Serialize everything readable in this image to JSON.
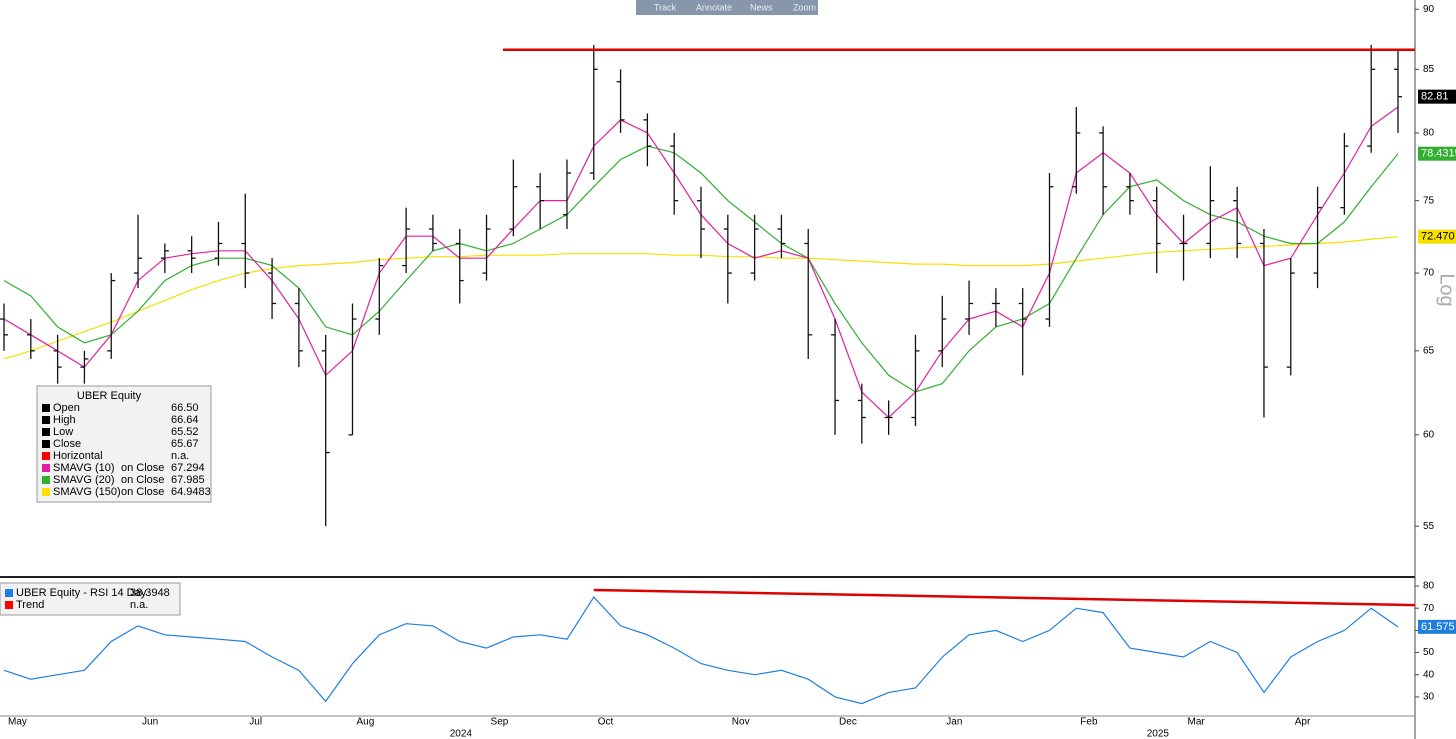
{
  "toolbar": {
    "buttons": [
      "Track",
      "Annotate",
      "News",
      "Zoom"
    ]
  },
  "chart_data": [
    {
      "type": "ohlc",
      "categories": [
        "May",
        null,
        null,
        null,
        null,
        "Jun",
        null,
        null,
        null,
        "Jul",
        null,
        null,
        null,
        "Aug",
        null,
        null,
        null,
        null,
        "Sep",
        null,
        null,
        null,
        "Oct",
        null,
        null,
        null,
        null,
        "Nov",
        null,
        null,
        null,
        "Dec",
        null,
        null,
        null,
        "Jan",
        null,
        null,
        null,
        null,
        "Feb",
        null,
        null,
        null,
        "Mar",
        null,
        null,
        null,
        "Apr",
        null,
        null,
        null,
        null
      ],
      "year_categories": [
        null,
        null,
        null,
        null,
        null,
        null,
        null,
        null,
        null,
        null,
        null,
        null,
        null,
        null,
        null,
        null,
        null,
        "2024",
        null,
        null,
        null,
        null,
        null,
        null,
        null,
        null,
        null,
        null,
        null,
        null,
        null,
        null,
        null,
        null,
        null,
        null,
        null,
        null,
        null,
        null,
        null,
        null,
        null,
        "2025",
        null,
        null,
        null,
        null,
        null,
        null,
        null,
        null,
        null
      ],
      "ohlc": {
        "open": [
          67,
          66,
          65,
          64,
          65,
          70,
          71,
          71.5,
          71,
          72,
          70,
          68,
          65,
          60,
          67,
          70.5,
          73,
          72,
          70,
          73,
          76,
          74,
          77,
          84,
          81,
          79,
          75,
          73,
          70,
          73,
          72,
          66,
          62,
          61,
          61,
          65,
          67,
          68,
          68,
          67,
          76,
          80,
          76,
          75,
          72,
          72,
          75,
          72,
          64,
          70,
          74.5,
          79,
          85
        ],
        "high": [
          68,
          67,
          66,
          65,
          70,
          74,
          72,
          72.5,
          73.5,
          75.5,
          71,
          69,
          66,
          68,
          71,
          74.5,
          74,
          73,
          74,
          78,
          77,
          78,
          87,
          85,
          81.5,
          80,
          76,
          74,
          74,
          74,
          73,
          67,
          63,
          62,
          66,
          68.5,
          69.5,
          69,
          69,
          77,
          82,
          80.5,
          77,
          76,
          74,
          77.5,
          76,
          73,
          71,
          76,
          80,
          87,
          86.5
        ],
        "low": [
          65,
          64.5,
          63,
          63,
          64.5,
          69,
          70,
          70,
          70.5,
          69,
          67,
          64,
          55,
          60,
          66,
          70,
          71.5,
          68,
          69.5,
          72.5,
          73,
          73,
          76.5,
          80,
          77.5,
          74,
          71,
          68,
          69.5,
          71,
          64.5,
          60,
          59.5,
          60,
          60.5,
          64,
          66,
          66.5,
          63.5,
          66.5,
          75.5,
          74,
          74,
          70,
          69.5,
          71,
          71,
          61,
          63.5,
          69,
          74,
          78.5,
          80
        ],
        "close": [
          66,
          65,
          64,
          64.5,
          69.5,
          71,
          71.5,
          71,
          72,
          70,
          68,
          65,
          59,
          67,
          70.5,
          73,
          72,
          69.5,
          73,
          76,
          75,
          77,
          85,
          81,
          79,
          75,
          73,
          70,
          73,
          72,
          66,
          62,
          61,
          61,
          65,
          67,
          68,
          68,
          67,
          76,
          80,
          76,
          75,
          72,
          72,
          75,
          72,
          64,
          70,
          74.5,
          79,
          85,
          82.81
        ],
        "last_label": "82.81"
      },
      "overlays": [
        {
          "color": "#e020a0",
          "values": [
            67,
            66,
            65,
            64,
            66,
            69.5,
            71,
            71.3,
            71.5,
            71.5,
            69.5,
            67,
            63.5,
            65,
            70,
            72.5,
            72.5,
            71,
            71,
            73,
            75,
            75,
            79,
            81,
            80,
            77,
            74,
            72,
            71,
            71.5,
            71,
            67,
            62.5,
            61,
            62.5,
            65,
            67,
            67.5,
            66.5,
            70,
            77,
            78.5,
            77,
            74,
            72,
            73.5,
            74.5,
            70.5,
            71,
            74,
            77,
            80.5,
            82
          ]
        },
        {
          "color": "#30b030",
          "values": [
            69.5,
            68.5,
            66.5,
            65.5,
            66,
            67.5,
            69.5,
            70.5,
            71,
            71,
            70.5,
            69,
            66.5,
            66,
            67.5,
            69.5,
            71.5,
            72,
            71.5,
            72,
            73,
            74,
            76,
            78,
            79,
            78.5,
            77,
            75,
            73.5,
            72,
            71,
            68,
            65.5,
            63.5,
            62.5,
            63,
            65,
            66.5,
            67,
            68,
            71,
            74,
            76,
            76.5,
            75,
            74,
            73.5,
            72.5,
            72,
            72,
            73.5,
            76,
            78.4315
          ],
          "last_label": "78.4315"
        },
        {
          "color": "#f5e000",
          "values": [
            64.5,
            65,
            65.6,
            66.2,
            66.8,
            67.5,
            68.2,
            68.9,
            69.5,
            70,
            70.3,
            70.5,
            70.6,
            70.7,
            70.9,
            71,
            71.1,
            71.1,
            71.2,
            71.2,
            71.2,
            71.3,
            71.3,
            71.3,
            71.3,
            71.2,
            71.2,
            71.1,
            71.1,
            71,
            71,
            70.9,
            70.8,
            70.7,
            70.6,
            70.6,
            70.5,
            70.5,
            70.5,
            70.6,
            70.8,
            71,
            71.2,
            71.4,
            71.5,
            71.6,
            71.7,
            71.8,
            71.9,
            72,
            72.1,
            72.3,
            72.47
          ],
          "last_label": "72.470"
        }
      ],
      "horizontal_line": {
        "value": 86.6,
        "color": "#e00000"
      },
      "log_scale": true,
      "axis_note": "Log",
      "ylim": [
        52.5,
        90.8
      ],
      "yticks": [
        55,
        60,
        65,
        70,
        75,
        80,
        85,
        90
      ],
      "info_box": {
        "title": "UBER Equity",
        "rows": [
          {
            "label": "Open",
            "color": "#000000",
            "value": "66.50"
          },
          {
            "label": "High",
            "color": "#000000",
            "value": "66.64"
          },
          {
            "label": "Low",
            "color": "#000000",
            "value": "65.52"
          },
          {
            "label": "Close",
            "color": "#000000",
            "value": "65.67"
          },
          {
            "label": "Horizontal",
            "color": "#ff0000",
            "value": "n.a."
          },
          {
            "label": "SMAVG (10)",
            "source": "on Close",
            "color": "#e020a0",
            "value": "67.294"
          },
          {
            "label": "SMAVG (20)",
            "source": "on Close",
            "color": "#30b030",
            "value": "67.985"
          },
          {
            "label": "SMAVG (150)",
            "source": "on Close",
            "color": "#ffe000",
            "value": "64.9483"
          }
        ]
      }
    },
    {
      "type": "line",
      "series": [
        {
          "color": "#1e7fe0",
          "values": [
            42,
            38,
            40,
            42,
            55,
            62,
            58,
            57,
            56,
            55,
            48,
            42,
            28,
            45,
            58,
            63,
            62,
            55,
            52,
            57,
            58,
            56,
            75,
            62,
            58,
            52,
            45,
            42,
            40,
            42,
            38,
            30,
            27,
            32,
            34,
            48,
            58,
            60,
            55,
            60,
            70,
            68,
            52,
            50,
            48,
            55,
            50,
            32,
            48,
            55,
            60,
            70,
            61.575
          ],
          "last_label": "61.575"
        }
      ],
      "trend_line": {
        "values": [
          78.2,
          71.4
        ],
        "color": "#e00000"
      },
      "ylim": [
        21.4,
        82.7
      ],
      "yticks": [
        30,
        40,
        50,
        60,
        70,
        80
      ],
      "info_box": {
        "rows": [
          {
            "label": "UBER Equity - RSI 14 Day",
            "color": "#1e7fe0",
            "value": "38.3948"
          },
          {
            "label": "Trend",
            "color": "#ff0000",
            "value": "n.a."
          }
        ]
      }
    }
  ]
}
